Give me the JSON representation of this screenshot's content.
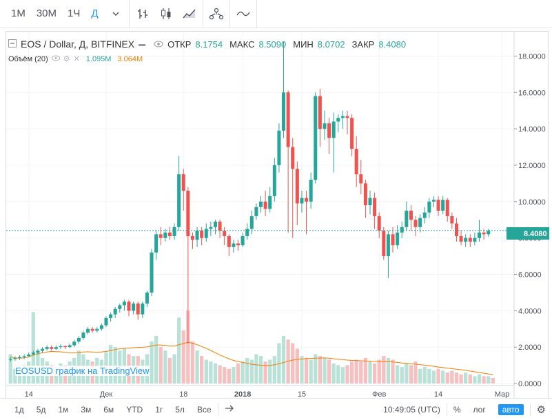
{
  "toolbar": {
    "intervals": [
      {
        "label": "1М",
        "active": false
      },
      {
        "label": "30М",
        "active": false
      },
      {
        "label": "1Ч",
        "active": false
      },
      {
        "label": "Д",
        "active": true
      }
    ],
    "icons": [
      "bar-type-icon",
      "candle-type-icon",
      "area-type-icon",
      "compare-icon",
      "indicators-icon"
    ]
  },
  "legend": {
    "symbol": "EOS / Dollar, Д, BITFINEX",
    "open_label": "ОТКР",
    "open": "8.1754",
    "high_label": "МАКС",
    "high": "8.5090",
    "low_label": "МИН",
    "low": "8.0702",
    "close_label": "ЗАКР",
    "close": "8.4080",
    "volume_label": "Объём (20)",
    "volume_value": "1.095M",
    "volume_ma": "3.064M"
  },
  "watermark": "EOSUSD график на TradingView",
  "price_label": "8.4080",
  "bottom": {
    "ranges": [
      "1д",
      "5д",
      "1м",
      "3м",
      "6м",
      "YTD",
      "1г",
      "5л",
      "Все"
    ],
    "time": "10:49:05 (UTC)",
    "percent": "%",
    "log": "лог",
    "auto": "авто"
  },
  "colors": {
    "up": "#26a69a",
    "down": "#ef5350",
    "vol_up": "#b9e2d7",
    "vol_down": "#f6c0c0",
    "ma": "#f57c00",
    "accent": "#2196f3"
  },
  "chart_data": {
    "type": "candlestick",
    "y_ticks": [
      "18.0000",
      "16.0000",
      "14.0000",
      "12.0000",
      "10.0000",
      "8.0000",
      "6.0000",
      "4.0000",
      "2.0000",
      "0.0000"
    ],
    "ylim": [
      0,
      19
    ],
    "x_ticks": [
      {
        "label": "14",
        "index": 4
      },
      {
        "label": "Дек",
        "index": 21
      },
      {
        "label": "18",
        "index": 38
      },
      {
        "label": "2018",
        "index": 51
      },
      {
        "label": "15",
        "index": 64
      },
      {
        "label": "Фев",
        "index": 81
      },
      {
        "label": "14",
        "index": 94
      },
      {
        "label": "Мар",
        "index": 108
      }
    ],
    "candles": [
      [
        1.3,
        1.35,
        1.45,
        1.2
      ],
      [
        1.35,
        1.4,
        1.5,
        1.25
      ],
      [
        1.4,
        1.45,
        1.55,
        1.3
      ],
      [
        1.45,
        1.5,
        1.6,
        1.35
      ],
      [
        1.5,
        1.6,
        1.7,
        1.45
      ],
      [
        1.6,
        1.7,
        1.8,
        1.55
      ],
      [
        1.7,
        1.8,
        1.9,
        1.6
      ],
      [
        1.8,
        1.9,
        2.0,
        1.7
      ],
      [
        1.9,
        2.0,
        2.1,
        1.8
      ],
      [
        2.0,
        1.9,
        2.1,
        1.8
      ],
      [
        1.9,
        2.0,
        2.1,
        1.85
      ],
      [
        2.0,
        2.05,
        2.15,
        1.9
      ],
      [
        2.05,
        2.0,
        2.1,
        1.9
      ],
      [
        2.0,
        2.1,
        2.2,
        1.95
      ],
      [
        2.1,
        2.3,
        2.4,
        2.0
      ],
      [
        2.3,
        2.5,
        2.6,
        2.2
      ],
      [
        2.5,
        2.8,
        2.9,
        2.4
      ],
      [
        2.8,
        3.0,
        3.1,
        2.7
      ],
      [
        3.0,
        2.9,
        3.1,
        2.8
      ],
      [
        2.9,
        3.0,
        3.1,
        2.8
      ],
      [
        3.0,
        3.2,
        3.3,
        2.9
      ],
      [
        3.2,
        3.6,
        3.7,
        3.1
      ],
      [
        3.6,
        3.8,
        3.9,
        3.4
      ],
      [
        3.8,
        4.1,
        4.2,
        3.6
      ],
      [
        4.1,
        4.3,
        4.4,
        3.9
      ],
      [
        4.3,
        4.5,
        4.6,
        4.0
      ],
      [
        4.5,
        4.0,
        4.6,
        3.7
      ],
      [
        4.0,
        4.4,
        4.5,
        3.8
      ],
      [
        4.4,
        3.8,
        4.5,
        3.5
      ],
      [
        3.8,
        4.4,
        4.5,
        3.6
      ],
      [
        4.4,
        5.0,
        5.1,
        4.2
      ],
      [
        5.0,
        7.2,
        7.4,
        4.8
      ],
      [
        7.2,
        8.2,
        8.4,
        6.8
      ],
      [
        8.2,
        8.0,
        8.6,
        7.6
      ],
      [
        8.0,
        8.3,
        8.5,
        7.8
      ],
      [
        8.3,
        8.1,
        8.6,
        7.9
      ],
      [
        8.1,
        8.6,
        8.8,
        7.9
      ],
      [
        8.6,
        11.5,
        12.5,
        8.4
      ],
      [
        11.5,
        10.6,
        11.8,
        9.5
      ],
      [
        10.6,
        8.1,
        10.8,
        2.2
      ],
      [
        8.1,
        7.9,
        8.3,
        7.4
      ],
      [
        7.9,
        8.4,
        8.6,
        7.5
      ],
      [
        8.4,
        8.0,
        8.6,
        7.6
      ],
      [
        8.0,
        8.5,
        8.8,
        7.8
      ],
      [
        8.5,
        8.6,
        8.9,
        8.1
      ],
      [
        8.6,
        8.9,
        9.0,
        8.2
      ],
      [
        8.9,
        8.4,
        9.0,
        8.0
      ],
      [
        8.4,
        8.1,
        8.6,
        7.6
      ],
      [
        8.1,
        7.5,
        8.2,
        7.0
      ],
      [
        7.5,
        7.7,
        7.9,
        7.2
      ],
      [
        7.7,
        7.6,
        7.9,
        7.3
      ],
      [
        7.6,
        8.1,
        8.3,
        7.5
      ],
      [
        8.1,
        8.5,
        8.8,
        7.9
      ],
      [
        8.5,
        9.2,
        9.5,
        8.2
      ],
      [
        9.2,
        9.7,
        9.9,
        9.0
      ],
      [
        9.7,
        10.0,
        10.3,
        9.4
      ],
      [
        10.0,
        9.6,
        10.6,
        9.2
      ],
      [
        9.6,
        10.3,
        10.8,
        9.4
      ],
      [
        10.3,
        12.0,
        12.4,
        10.0
      ],
      [
        12.0,
        13.9,
        14.3,
        11.6
      ],
      [
        13.9,
        16.0,
        18.8,
        13.5
      ],
      [
        16.0,
        13.0,
        16.1,
        8.3
      ],
      [
        13.0,
        11.8,
        13.5,
        8.0
      ],
      [
        11.8,
        9.9,
        12.2,
        8.7
      ],
      [
        9.9,
        10.2,
        10.6,
        9.4
      ],
      [
        10.2,
        10.0,
        10.6,
        8.2
      ],
      [
        10.0,
        11.2,
        11.6,
        9.6
      ],
      [
        11.2,
        15.8,
        16.0,
        11.0
      ],
      [
        15.8,
        14.0,
        16.2,
        13.0
      ],
      [
        14.0,
        14.3,
        15.0,
        13.4
      ],
      [
        14.3,
        13.5,
        14.6,
        12.6
      ],
      [
        13.5,
        14.4,
        14.9,
        11.6
      ],
      [
        14.4,
        14.6,
        14.8,
        13.8
      ],
      [
        14.6,
        14.7,
        15.0,
        14.0
      ],
      [
        14.7,
        14.6,
        15.0,
        13.7
      ],
      [
        14.6,
        12.9,
        14.8,
        12.5
      ],
      [
        12.9,
        11.5,
        13.6,
        10.8
      ],
      [
        11.5,
        11.0,
        12.3,
        10.4
      ],
      [
        11.0,
        9.8,
        11.2,
        9.1
      ],
      [
        9.8,
        10.2,
        10.6,
        9.3
      ],
      [
        10.2,
        9.2,
        10.5,
        8.5
      ],
      [
        9.2,
        8.4,
        9.4,
        8.0
      ],
      [
        8.4,
        7.0,
        8.6,
        6.8
      ],
      [
        7.0,
        8.2,
        8.4,
        5.8
      ],
      [
        8.2,
        7.6,
        8.6,
        7.2
      ],
      [
        7.6,
        8.3,
        8.7,
        7.4
      ],
      [
        8.3,
        8.6,
        8.9,
        8.0
      ],
      [
        8.6,
        9.5,
        10.0,
        8.4
      ],
      [
        9.5,
        9.0,
        9.8,
        8.4
      ],
      [
        9.0,
        8.6,
        9.2,
        8.1
      ],
      [
        8.6,
        9.1,
        9.3,
        8.3
      ],
      [
        9.1,
        9.4,
        9.7,
        8.8
      ],
      [
        9.4,
        10.0,
        10.2,
        9.1
      ],
      [
        10.0,
        10.1,
        10.3,
        9.7
      ],
      [
        10.1,
        9.5,
        10.3,
        9.2
      ],
      [
        9.5,
        10.1,
        10.3,
        9.3
      ],
      [
        10.1,
        9.2,
        10.2,
        8.9
      ],
      [
        9.2,
        8.8,
        9.4,
        8.5
      ],
      [
        8.8,
        8.1,
        9.1,
        7.8
      ],
      [
        8.1,
        7.8,
        8.4,
        7.6
      ],
      [
        7.8,
        8.0,
        8.2,
        7.5
      ],
      [
        8.0,
        7.8,
        8.2,
        7.5
      ],
      [
        7.8,
        8.0,
        8.3,
        7.6
      ],
      [
        8.0,
        8.3,
        9.0,
        7.8
      ],
      [
        8.3,
        8.2,
        8.5,
        7.9
      ],
      [
        8.2,
        8.4,
        8.5,
        8.07
      ]
    ],
    "volumes": [
      1.6,
      0.8,
      0.9,
      1.0,
      1.2,
      3.9,
      1.8,
      1.4,
      1.2,
      1.0,
      0.9,
      1.1,
      1.0,
      1.2,
      1.4,
      1.8,
      1.6,
      1.3,
      1.2,
      1.4,
      1.3,
      1.7,
      2.1,
      2.0,
      1.8,
      1.9,
      1.6,
      1.5,
      1.5,
      1.3,
      1.6,
      2.3,
      2.6,
      2.0,
      1.8,
      1.4,
      1.6,
      3.6,
      2.9,
      4.0,
      2.3,
      1.8,
      1.5,
      1.3,
      1.2,
      1.1,
      1.0,
      0.9,
      0.8,
      0.9,
      1.1,
      1.2,
      1.4,
      1.3,
      1.6,
      1.5,
      1.2,
      1.3,
      1.5,
      2.2,
      2.6,
      2.4,
      2.2,
      1.9,
      1.5,
      1.4,
      1.3,
      1.6,
      1.5,
      1.4,
      1.3,
      1.1,
      1.0,
      0.9,
      1.0,
      1.2,
      1.3,
      1.2,
      1.4,
      1.2,
      1.1,
      1.3,
      1.5,
      1.4,
      1.3,
      1.0,
      0.9,
      1.1,
      1.0,
      1.2,
      0.8,
      0.9,
      0.8,
      0.7,
      0.8,
      0.7,
      0.6,
      0.7,
      0.6,
      0.5,
      0.6,
      0.5,
      0.4,
      0.5,
      0.4,
      0.4,
      0.3
    ],
    "volume_ma": [
      1.45,
      1.4,
      1.38,
      1.4,
      1.45,
      1.55,
      1.62,
      1.68,
      1.72,
      1.75,
      1.74,
      1.73,
      1.7,
      1.68,
      1.68,
      1.7,
      1.72,
      1.73,
      1.72,
      1.71,
      1.72,
      1.75,
      1.8,
      1.85,
      1.9,
      1.92,
      1.93,
      1.95,
      1.97,
      1.98,
      2.0,
      2.05,
      2.1,
      2.1,
      2.08,
      2.05,
      2.05,
      2.12,
      2.18,
      2.25,
      2.2,
      2.12,
      2.02,
      1.92,
      1.8,
      1.68,
      1.56,
      1.45,
      1.35,
      1.26,
      1.2,
      1.15,
      1.1,
      1.05,
      1.02,
      1.0,
      0.98,
      0.99,
      1.02,
      1.08,
      1.15,
      1.22,
      1.28,
      1.32,
      1.34,
      1.36,
      1.37,
      1.38,
      1.39,
      1.4,
      1.38,
      1.35,
      1.32,
      1.3,
      1.28,
      1.26,
      1.25,
      1.24,
      1.23,
      1.22,
      1.2,
      1.2,
      1.2,
      1.19,
      1.18,
      1.15,
      1.12,
      1.1,
      1.08,
      1.06,
      1.03,
      1.0,
      0.97,
      0.94,
      0.9,
      0.87,
      0.84,
      0.81,
      0.78,
      0.75,
      0.72,
      0.68,
      0.64,
      0.6,
      0.56,
      0.52,
      0.48
    ]
  }
}
